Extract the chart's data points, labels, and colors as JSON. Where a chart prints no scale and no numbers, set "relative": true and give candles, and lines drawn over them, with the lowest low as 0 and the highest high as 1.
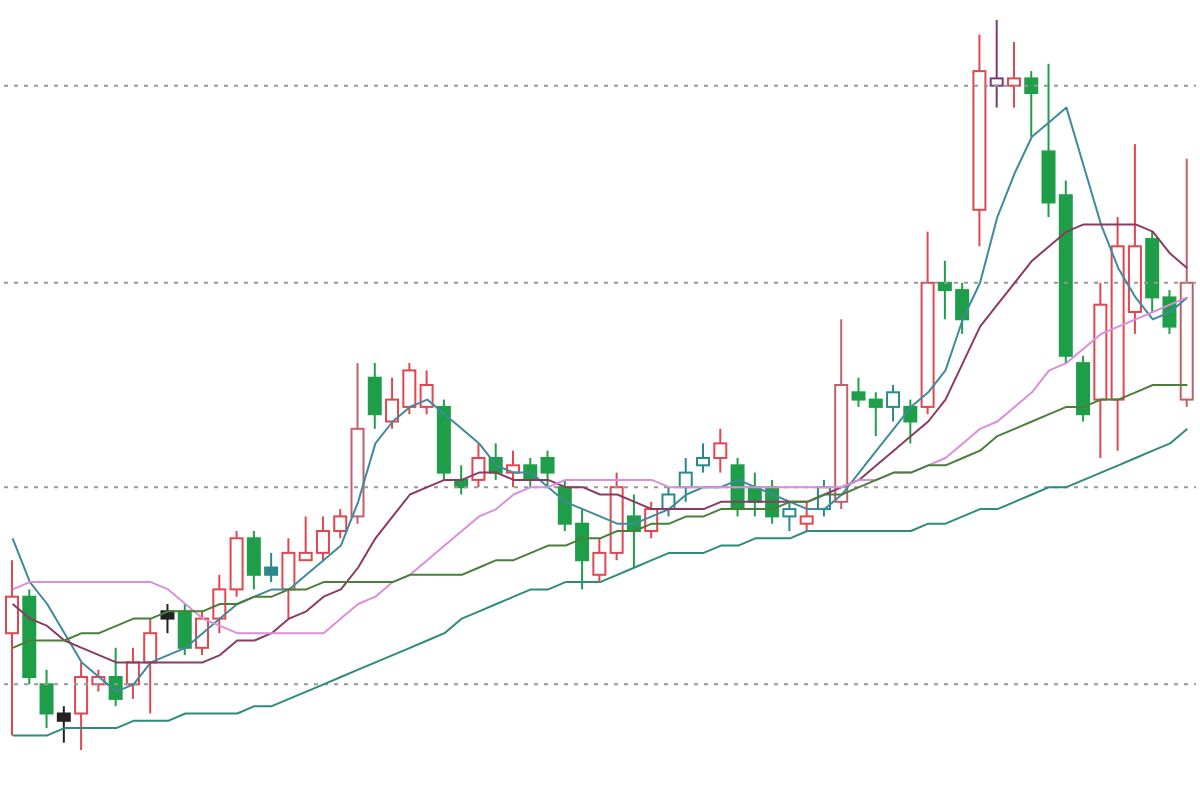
{
  "chart_data": {
    "type": "candlestick",
    "relative": true,
    "categories": [
      null,
      null,
      null,
      null,
      null,
      null,
      null,
      null,
      null,
      null,
      null,
      null,
      null,
      null,
      null,
      null,
      null,
      null,
      null,
      null,
      null,
      null,
      null,
      null,
      null,
      null,
      null,
      null,
      null,
      null,
      null,
      null,
      null,
      null,
      null,
      null,
      null,
      null,
      null,
      null,
      null,
      null,
      null,
      null,
      null,
      null,
      null,
      null,
      null,
      null,
      null,
      null,
      null,
      null,
      null,
      null,
      null,
      null,
      null,
      null,
      null,
      null,
      null,
      null,
      null,
      null,
      null,
      null,
      null
    ],
    "ohlc": [
      [
        0.16,
        0.26,
        0.02,
        0.21
      ],
      [
        0.21,
        0.22,
        0.09,
        0.1
      ],
      [
        0.09,
        0.11,
        0.03,
        0.05
      ],
      [
        0.05,
        0.06,
        0.01,
        0.04
      ],
      [
        0.05,
        0.12,
        0,
        0.1
      ],
      [
        0.09,
        0.11,
        0.08,
        0.1
      ],
      [
        0.1,
        0.14,
        0.06,
        0.07
      ],
      [
        0.09,
        0.14,
        0.07,
        0.12
      ],
      [
        0.12,
        0.18,
        0.05,
        0.16
      ],
      [
        0.19,
        0.2,
        0.16,
        0.18
      ],
      [
        0.19,
        0.2,
        0.13,
        0.14
      ],
      [
        0.14,
        0.19,
        0.13,
        0.18
      ],
      [
        0.18,
        0.24,
        0.16,
        0.22
      ],
      [
        0.22,
        0.3,
        0.21,
        0.29
      ],
      [
        0.29,
        0.3,
        0.22,
        0.24
      ],
      [
        0.25,
        0.27,
        0.23,
        0.24
      ],
      [
        0.22,
        0.29,
        0.18,
        0.27
      ],
      [
        0.26,
        0.32,
        0.26,
        0.27
      ],
      [
        0.27,
        0.32,
        0.26,
        0.3
      ],
      [
        0.3,
        0.33,
        0.29,
        0.32
      ],
      [
        0.32,
        0.53,
        0.31,
        0.44
      ],
      [
        0.51,
        0.53,
        0.44,
        0.46
      ],
      [
        0.45,
        0.51,
        0.44,
        0.48
      ],
      [
        0.47,
        0.53,
        0.46,
        0.52
      ],
      [
        0.47,
        0.52,
        0.46,
        0.5
      ],
      [
        0.47,
        0.48,
        0.37,
        0.38
      ],
      [
        0.37,
        0.39,
        0.35,
        0.36
      ],
      [
        0.37,
        0.42,
        0.36,
        0.4
      ],
      [
        0.4,
        0.42,
        0.37,
        0.38
      ],
      [
        0.38,
        0.41,
        0.36,
        0.39
      ],
      [
        0.39,
        0.4,
        0.36,
        0.37
      ],
      [
        0.4,
        0.41,
        0.36,
        0.38
      ],
      [
        0.36,
        0.37,
        0.3,
        0.31
      ],
      [
        0.31,
        0.33,
        0.22,
        0.26
      ],
      [
        0.24,
        0.29,
        0.23,
        0.27
      ],
      [
        0.27,
        0.38,
        0.26,
        0.36
      ],
      [
        0.32,
        0.35,
        0.25,
        0.3
      ],
      [
        0.3,
        0.34,
        0.29,
        0.33
      ],
      [
        0.33,
        0.36,
        0.32,
        0.35
      ],
      [
        0.36,
        0.4,
        0.34,
        0.38
      ],
      [
        0.39,
        0.42,
        0.38,
        0.4
      ],
      [
        0.4,
        0.44,
        0.38,
        0.42
      ],
      [
        0.39,
        0.4,
        0.32,
        0.33
      ],
      [
        0.36,
        0.38,
        0.32,
        0.34
      ],
      [
        0.36,
        0.37,
        0.31,
        0.32
      ],
      [
        0.32,
        0.34,
        0.3,
        0.33
      ],
      [
        0.31,
        0.34,
        0.3,
        0.32
      ],
      [
        0.33,
        0.37,
        0.32,
        0.36
      ],
      [
        0.34,
        0.59,
        0.33,
        0.5
      ],
      [
        0.49,
        0.51,
        0.47,
        0.48
      ],
      [
        0.48,
        0.49,
        0.43,
        0.47
      ],
      [
        0.47,
        0.5,
        0.45,
        0.49
      ],
      [
        0.47,
        0.48,
        0.42,
        0.45
      ],
      [
        0.47,
        0.71,
        0.46,
        0.64
      ],
      [
        0.64,
        0.67,
        0.59,
        0.63
      ],
      [
        0.63,
        0.64,
        0.57,
        0.59
      ],
      [
        0.74,
        0.98,
        0.69,
        0.93
      ],
      [
        0.91,
        1,
        0.88,
        0.92
      ],
      [
        0.91,
        0.97,
        0.88,
        0.92
      ],
      [
        0.92,
        0.93,
        0.84,
        0.9
      ],
      [
        0.82,
        0.94,
        0.73,
        0.75
      ],
      [
        0.76,
        0.78,
        0.53,
        0.54
      ],
      [
        0.53,
        0.54,
        0.45,
        0.46
      ],
      [
        0.48,
        0.64,
        0.4,
        0.61
      ],
      [
        0.48,
        0.73,
        0.41,
        0.69
      ],
      [
        0.6,
        0.83,
        0.57,
        0.69
      ],
      [
        0.7,
        0.71,
        0.6,
        0.62
      ],
      [
        0.62,
        0.63,
        0.57,
        0.58
      ],
      [
        0.48,
        0.81,
        0.47,
        0.64
      ]
    ],
    "colors": [
      "#e0474f",
      "#1f9e4a",
      "#1f9e4a",
      "#222222",
      "#e0474f",
      "#e0474f",
      "#1f9e4a",
      "#e0474f",
      "#e0474f",
      "#222222",
      "#1f9e4a",
      "#e0474f",
      "#e0474f",
      "#e0474f",
      "#1f9e4a",
      "#2a8a8a",
      "#e0474f",
      "#e0474f",
      "#e0474f",
      "#e0474f",
      "#c0606a",
      "#1f9e4a",
      "#e0474f",
      "#e0474f",
      "#e0474f",
      "#1f9e4a",
      "#1f9e4a",
      "#e0474f",
      "#1f9e4a",
      "#e0474f",
      "#1f9e4a",
      "#1f9e4a",
      "#1f9e4a",
      "#1f9e4a",
      "#e0474f",
      "#e0474f",
      "#1f9e4a",
      "#e0474f",
      "#2a8a8a",
      "#2a8a8a",
      "#2a8a8a",
      "#e0474f",
      "#1f9e4a",
      "#1f9e4a",
      "#1f9e4a",
      "#2a8a8a",
      "#e0474f",
      "#2a8a8a",
      "#c0606a",
      "#1f9e4a",
      "#1f9e4a",
      "#2a8a8a",
      "#1f9e4a",
      "#e0474f",
      "#1f9e4a",
      "#1f9e4a",
      "#e0474f",
      "#7a3a7a",
      "#e0474f",
      "#1f9e4a",
      "#1f9e4a",
      "#1f9e4a",
      "#1f9e4a",
      "#e0474f",
      "#e0474f",
      "#e0474f",
      "#1f9e4a",
      "#1f9e4a",
      "#c0606a"
    ],
    "series": [
      {
        "type": "line",
        "color": "#3f8a9c",
        "values": [
          0.29,
          0.23,
          0.2,
          0.16,
          0.12,
          0.1,
          0.08,
          0.09,
          0.12,
          0.13,
          0.14,
          0.16,
          0.18,
          0.2,
          0.21,
          0.22,
          0.22,
          0.24,
          0.26,
          0.28,
          0.34,
          0.42,
          0.45,
          0.47,
          0.48,
          0.46,
          0.44,
          0.42,
          0.39,
          0.38,
          0.38,
          0.36,
          0.34,
          0.33,
          0.32,
          0.31,
          0.31,
          0.32,
          0.33,
          0.35,
          0.36,
          0.36,
          0.37,
          0.36,
          0.35,
          0.34,
          0.33,
          0.33,
          0.35,
          0.38,
          0.41,
          0.44,
          0.47,
          0.49,
          0.52,
          0.59,
          0.64,
          0.73,
          0.79,
          0.84,
          0.86,
          0.88,
          0.8,
          0.72,
          0.66,
          0.62,
          0.59,
          0.6,
          0.62
        ]
      },
      {
        "type": "line",
        "color": "#8b3a62",
        "values": [
          0.2,
          0.18,
          0.17,
          0.15,
          0.14,
          0.13,
          0.12,
          0.12,
          0.12,
          0.12,
          0.12,
          0.12,
          0.13,
          0.15,
          0.15,
          0.16,
          0.18,
          0.19,
          0.21,
          0.22,
          0.25,
          0.29,
          0.32,
          0.35,
          0.36,
          0.37,
          0.37,
          0.38,
          0.38,
          0.37,
          0.37,
          0.37,
          0.36,
          0.36,
          0.35,
          0.35,
          0.34,
          0.33,
          0.33,
          0.33,
          0.33,
          0.34,
          0.34,
          0.34,
          0.34,
          0.34,
          0.34,
          0.35,
          0.36,
          0.37,
          0.39,
          0.41,
          0.43,
          0.45,
          0.48,
          0.53,
          0.58,
          0.61,
          0.64,
          0.67,
          0.69,
          0.71,
          0.72,
          0.72,
          0.72,
          0.72,
          0.71,
          0.68,
          0.66
        ]
      },
      {
        "type": "line",
        "color": "#d98fd9",
        "values": [
          0.22,
          0.23,
          0.23,
          0.23,
          0.23,
          0.23,
          0.23,
          0.23,
          0.23,
          0.22,
          0.2,
          0.18,
          0.17,
          0.16,
          0.16,
          0.16,
          0.16,
          0.16,
          0.16,
          0.18,
          0.2,
          0.21,
          0.23,
          0.24,
          0.26,
          0.28,
          0.3,
          0.32,
          0.33,
          0.35,
          0.36,
          0.36,
          0.37,
          0.37,
          0.37,
          0.37,
          0.37,
          0.37,
          0.36,
          0.36,
          0.36,
          0.36,
          0.36,
          0.36,
          0.36,
          0.36,
          0.36,
          0.36,
          0.36,
          0.37,
          0.37,
          0.38,
          0.38,
          0.39,
          0.4,
          0.42,
          0.44,
          0.45,
          0.47,
          0.49,
          0.52,
          0.53,
          0.55,
          0.57,
          0.58,
          0.59,
          0.6,
          0.61,
          0.62
        ]
      },
      {
        "type": "line",
        "color": "#4a7f3a",
        "values": [
          0.14,
          0.15,
          0.15,
          0.15,
          0.16,
          0.16,
          0.17,
          0.18,
          0.18,
          0.19,
          0.19,
          0.19,
          0.2,
          0.2,
          0.21,
          0.21,
          0.22,
          0.22,
          0.23,
          0.23,
          0.23,
          0.23,
          0.23,
          0.24,
          0.24,
          0.24,
          0.24,
          0.25,
          0.26,
          0.26,
          0.27,
          0.28,
          0.28,
          0.29,
          0.29,
          0.3,
          0.3,
          0.31,
          0.31,
          0.32,
          0.32,
          0.33,
          0.33,
          0.33,
          0.33,
          0.34,
          0.34,
          0.35,
          0.35,
          0.36,
          0.37,
          0.38,
          0.38,
          0.39,
          0.39,
          0.4,
          0.41,
          0.43,
          0.44,
          0.45,
          0.46,
          0.47,
          0.47,
          0.48,
          0.48,
          0.49,
          0.5,
          0.5,
          0.5
        ]
      },
      {
        "type": "line",
        "color": "#2e8b7a",
        "values": [
          0.02,
          0.02,
          0.02,
          0.03,
          0.03,
          0.03,
          0.03,
          0.04,
          0.04,
          0.04,
          0.05,
          0.05,
          0.05,
          0.05,
          0.06,
          0.06,
          0.07,
          0.08,
          0.09,
          0.1,
          0.11,
          0.12,
          0.13,
          0.14,
          0.15,
          0.16,
          0.18,
          0.19,
          0.2,
          0.21,
          0.22,
          0.22,
          0.23,
          0.23,
          0.23,
          0.24,
          0.25,
          0.26,
          0.27,
          0.27,
          0.27,
          0.28,
          0.28,
          0.29,
          0.29,
          0.29,
          0.3,
          0.3,
          0.3,
          0.3,
          0.3,
          0.3,
          0.3,
          0.31,
          0.31,
          0.32,
          0.33,
          0.33,
          0.34,
          0.35,
          0.36,
          0.36,
          0.37,
          0.38,
          0.39,
          0.4,
          0.41,
          0.42,
          0.44
        ]
      }
    ],
    "ref_lines": [
      {
        "axis": "y",
        "value": 0.91,
        "color": "#999999",
        "line_style": "dotted"
      },
      {
        "axis": "y",
        "value": 0.64,
        "color": "#999999",
        "line_style": "dotted"
      },
      {
        "axis": "y",
        "value": 0.36,
        "color": "#999999",
        "line_style": "dotted"
      },
      {
        "axis": "y",
        "value": 0.09,
        "color": "#999999",
        "line_style": "dotted"
      }
    ]
  }
}
